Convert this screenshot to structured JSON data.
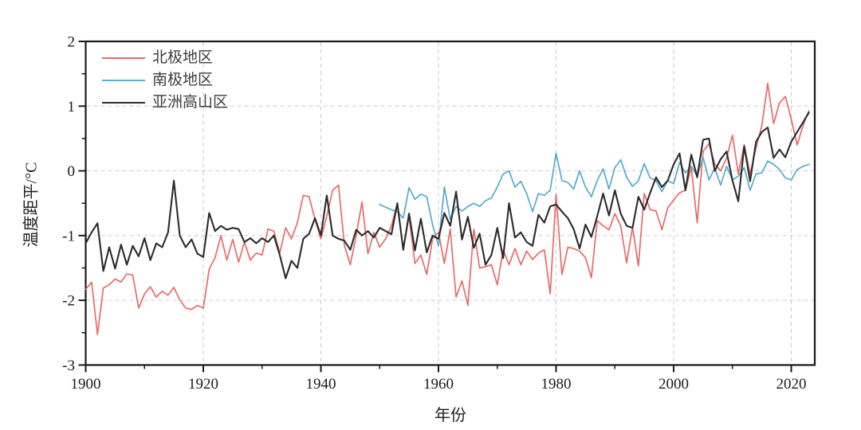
{
  "page": {
    "background": "#ffffff"
  },
  "chart_data": {
    "type": "line",
    "title": "",
    "xlabel": "年份",
    "ylabel": "温度距平/°C",
    "xlim": [
      1900,
      2024
    ],
    "ylim": [
      -3,
      2
    ],
    "x_major_ticks": [
      1900,
      1920,
      1940,
      1960,
      1980,
      2000,
      2020
    ],
    "x_minor_ticks": [
      1910,
      1930,
      1950,
      1970,
      1990,
      2010
    ],
    "y_major_ticks": [
      -3,
      -2,
      -1,
      0,
      1,
      2
    ],
    "y_minor_ticks": [
      -2.5,
      -1.5,
      -0.5,
      0.5,
      1.5
    ],
    "grid": {
      "show": true,
      "style": "dashed",
      "color": "#cbcbcb",
      "x_lines": [
        1920,
        1940,
        1960,
        1980,
        2000,
        2020
      ],
      "y_lines": [
        -2,
        -1,
        0,
        1
      ]
    },
    "axis_color": "#1a1a1a",
    "legend_position": "top-left-inside",
    "series": [
      {
        "name": "北极地区",
        "color": "#e96a6b",
        "line_width": 1.7,
        "start_year": 1900,
        "end_year": 2023,
        "values": [
          -1.83,
          -1.72,
          -2.53,
          -1.81,
          -1.76,
          -1.67,
          -1.72,
          -1.59,
          -1.61,
          -2.12,
          -1.9,
          -1.79,
          -1.95,
          -1.86,
          -1.92,
          -1.8,
          -1.99,
          -2.12,
          -2.14,
          -2.08,
          -2.12,
          -1.52,
          -1.34,
          -1.0,
          -1.38,
          -1.06,
          -1.41,
          -1.1,
          -1.38,
          -1.27,
          -1.3,
          -0.9,
          -0.93,
          -1.27,
          -0.88,
          -1.05,
          -0.8,
          -0.38,
          -0.4,
          -0.75,
          -1.05,
          -0.7,
          -0.3,
          -0.22,
          -1.15,
          -1.45,
          -1.0,
          -0.48,
          -1.28,
          -0.95,
          -1.18,
          -1.05,
          -0.85,
          -0.5,
          -1.22,
          -0.7,
          -1.43,
          -1.3,
          -1.6,
          -1.05,
          -0.95,
          -1.43,
          -0.9,
          -1.95,
          -1.7,
          -2.08,
          -0.9,
          -1.5,
          -1.48,
          -1.45,
          -1.76,
          -1.22,
          -1.45,
          -1.2,
          -1.45,
          -1.24,
          -1.37,
          -1.27,
          -1.22,
          -1.9,
          -0.36,
          -1.6,
          -1.18,
          -1.2,
          -1.24,
          -1.34,
          -1.65,
          -0.77,
          -0.85,
          -0.91,
          -0.66,
          -0.85,
          -1.42,
          -0.87,
          -1.47,
          -0.35,
          -0.6,
          -0.62,
          -0.91,
          -0.57,
          -0.45,
          -0.34,
          -0.3,
          0.05,
          -0.8,
          0.3,
          0.42,
          0.1,
          0.0,
          0.2,
          0.55,
          -0.05,
          0.4,
          -0.05,
          0.35,
          0.7,
          1.35,
          0.73,
          1.05,
          1.15,
          0.8,
          0.4,
          0.7,
          0.93
        ]
      },
      {
        "name": "南极地区",
        "color": "#57abce",
        "line_width": 1.7,
        "start_year": 1950,
        "end_year": 2023,
        "values": [
          -0.52,
          -0.56,
          -0.6,
          -0.63,
          -0.73,
          -0.26,
          -0.44,
          -0.36,
          -0.4,
          -0.83,
          -1.16,
          -0.25,
          -0.75,
          -0.55,
          -0.62,
          -0.55,
          -0.5,
          -0.55,
          -0.46,
          -0.42,
          -0.25,
          -0.05,
          0.0,
          -0.25,
          -0.16,
          -0.35,
          -0.63,
          -0.35,
          -0.38,
          -0.3,
          0.27,
          -0.15,
          -0.18,
          -0.28,
          0.0,
          -0.25,
          -0.4,
          -0.15,
          0.03,
          -0.28,
          0.05,
          0.17,
          -0.1,
          -0.24,
          -0.15,
          0.11,
          -0.11,
          -0.15,
          -0.32,
          -0.15,
          -0.2,
          0.13,
          -0.03,
          0.07,
          -0.08,
          0.21,
          -0.14,
          0.04,
          -0.22,
          0.07,
          -0.14,
          -0.08,
          0.05,
          -0.3,
          -0.05,
          -0.03,
          0.15,
          0.1,
          0.02,
          -0.11,
          -0.14,
          0.02,
          0.07,
          0.1
        ]
      },
      {
        "name": "亚洲高山区",
        "color": "#2b2b2b",
        "line_width": 2.1,
        "start_year": 1900,
        "end_year": 2023,
        "values": [
          -1.12,
          -0.95,
          -0.81,
          -1.55,
          -1.18,
          -1.51,
          -1.14,
          -1.45,
          -1.16,
          -1.32,
          -1.04,
          -1.38,
          -1.12,
          -1.18,
          -0.95,
          -0.15,
          -1.0,
          -1.18,
          -1.06,
          -1.28,
          -1.33,
          -0.65,
          -0.93,
          -0.85,
          -0.91,
          -0.88,
          -0.9,
          -1.1,
          -1.04,
          -1.12,
          -1.04,
          -1.1,
          -1.0,
          -1.3,
          -1.66,
          -1.39,
          -1.5,
          -1.05,
          -0.97,
          -0.73,
          -1.0,
          -0.38,
          -1.0,
          -1.05,
          -1.08,
          -1.22,
          -0.91,
          -1.0,
          -0.93,
          -1.03,
          -0.88,
          -0.93,
          -0.98,
          -0.5,
          -1.22,
          -0.66,
          -1.23,
          -0.74,
          -1.26,
          -1.0,
          -1.05,
          -0.65,
          -0.85,
          -0.32,
          -1.06,
          -0.71,
          -1.19,
          -0.97,
          -1.45,
          -1.3,
          -0.88,
          -1.35,
          -0.5,
          -1.03,
          -0.95,
          -1.1,
          -1.16,
          -0.68,
          -0.8,
          -0.55,
          -0.52,
          -0.63,
          -0.73,
          -0.9,
          -1.2,
          -0.83,
          -1.02,
          -0.7,
          -0.35,
          -0.69,
          -0.3,
          -0.66,
          -0.85,
          -0.88,
          -0.4,
          -0.6,
          -0.34,
          -0.1,
          -0.25,
          -0.15,
          0.1,
          0.27,
          -0.3,
          0.25,
          -0.1,
          0.48,
          0.5,
          0.0,
          0.18,
          0.3,
          -0.15,
          -0.47,
          0.38,
          -0.16,
          0.45,
          0.6,
          0.67,
          0.2,
          0.33,
          0.21,
          0.45,
          0.6,
          0.75,
          0.9
        ]
      }
    ]
  }
}
